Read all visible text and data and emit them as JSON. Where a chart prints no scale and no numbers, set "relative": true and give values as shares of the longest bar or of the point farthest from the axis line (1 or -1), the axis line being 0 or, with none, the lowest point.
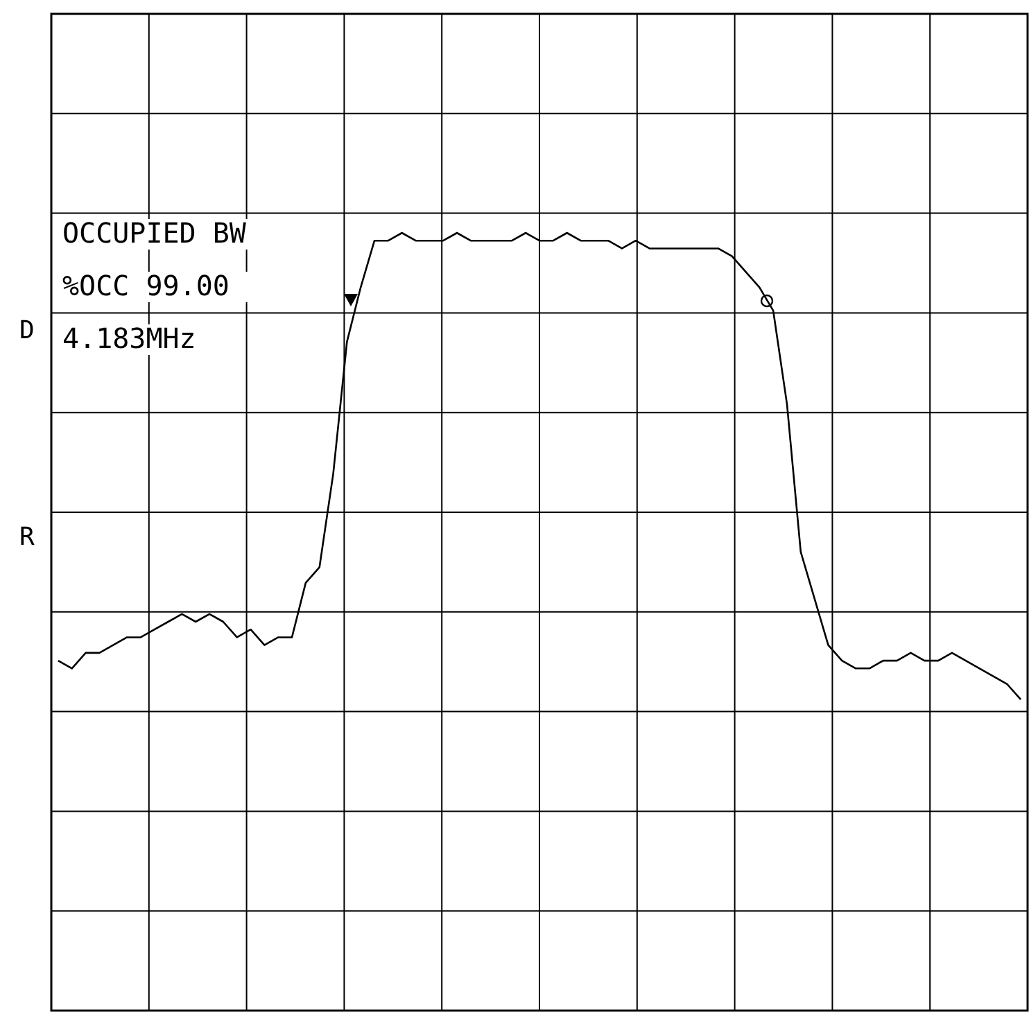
{
  "chart_data": {
    "type": "line",
    "relative": true,
    "grid": true,
    "categories": [
      null,
      null,
      null,
      null,
      null,
      null,
      null,
      null,
      null,
      null,
      null,
      null,
      null,
      null,
      null,
      null,
      null,
      null,
      null,
      null,
      null,
      null,
      null,
      null,
      null,
      null,
      null,
      null,
      null,
      null,
      null,
      null,
      null,
      null,
      null,
      null,
      null,
      null,
      null,
      null,
      null,
      null,
      null,
      null,
      null,
      null,
      null,
      null,
      null,
      null,
      null,
      null,
      null,
      null,
      null,
      null,
      null,
      null,
      null,
      null,
      null,
      null,
      null,
      null,
      null,
      null,
      null,
      null,
      null,
      null,
      null
    ],
    "series": [
      {
        "color": "#000000",
        "values": [
          0.45,
          0.44,
          0.46,
          0.46,
          0.47,
          0.48,
          0.48,
          0.49,
          0.5,
          0.51,
          0.5,
          0.51,
          0.5,
          0.48,
          0.49,
          0.47,
          0.48,
          0.48,
          0.55,
          0.57,
          0.69,
          0.86,
          0.93,
          0.99,
          0.99,
          1,
          0.99,
          0.99,
          0.99,
          1,
          0.99,
          0.99,
          0.99,
          0.99,
          1,
          0.99,
          0.99,
          1,
          0.99,
          0.99,
          0.99,
          0.98,
          0.99,
          0.98,
          0.98,
          0.98,
          0.98,
          0.98,
          0.98,
          0.97,
          0.95,
          0.93,
          0.9,
          0.78,
          0.59,
          0.53,
          0.47,
          0.45,
          0.44,
          0.44,
          0.45,
          0.45,
          0.46,
          0.45,
          0.45,
          0.46,
          0.45,
          0.44,
          0.43,
          0.42,
          0.4
        ]
      }
    ],
    "annotations": [
      "OCCUPIED BW",
      "%OCC 99.00",
      "4.183MHz",
      "D",
      "R"
    ]
  }
}
